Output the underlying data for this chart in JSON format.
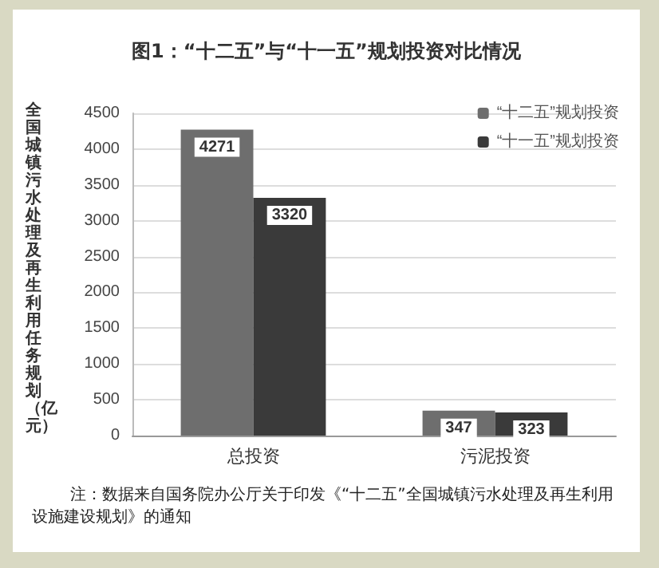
{
  "chart_data": {
    "type": "bar",
    "title": "图1：“十二五”与“十一五”规划投资对比情况",
    "ylabel": "全国城镇污水处理及再生利用任务规划（亿元）",
    "categories": [
      "总投资",
      "污泥投资"
    ],
    "series": [
      {
        "name": "“十二五”规划投资",
        "color": "#6e6e6e",
        "values": [
          4271,
          347
        ]
      },
      {
        "name": "“十一五”规划投资",
        "color": "#3a3a3a",
        "values": [
          3320,
          323
        ]
      }
    ],
    "ylim": [
      0,
      4500
    ],
    "yticks": [
      0,
      500,
      1000,
      1500,
      2000,
      2500,
      3000,
      3500,
      4000,
      4500
    ],
    "grid": "y",
    "legend": "top right",
    "data_labels": true,
    "annotations": [
      "注：数据来自国务院办公厅关于印发《“十二五”全国城镇污水处理及再生利用设施建设规划》的通知"
    ]
  }
}
